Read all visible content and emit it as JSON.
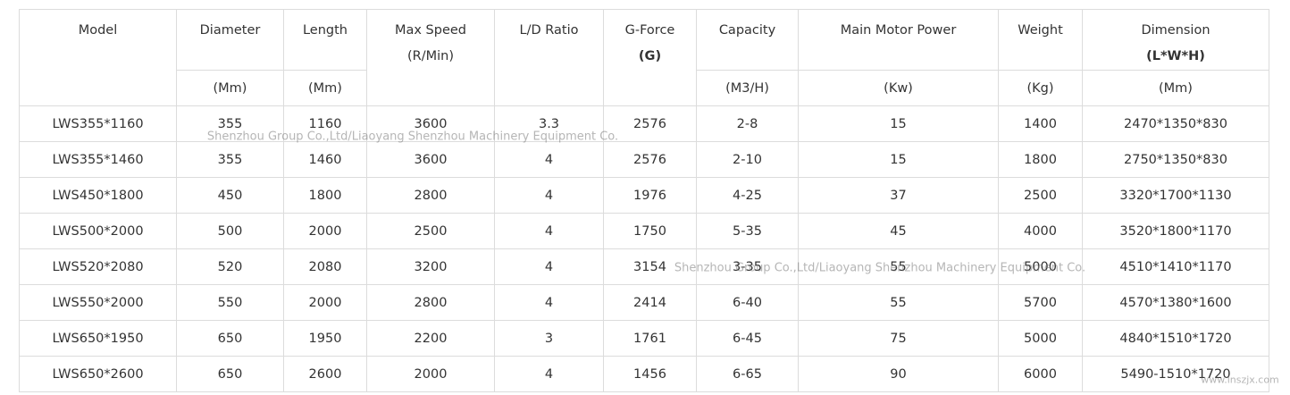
{
  "header": {
    "columns": [
      {
        "title": "Model"
      },
      {
        "title": "Diameter",
        "unit": "(Mm)"
      },
      {
        "title": "Length",
        "unit": "(Mm)"
      },
      {
        "title": "Max Speed",
        "subtitle": "(R/Min)"
      },
      {
        "title": "L/D Ratio"
      },
      {
        "title": "G-Force",
        "subtitle": "(G)"
      },
      {
        "title": "Capacity",
        "unit": "(M3/H)"
      },
      {
        "title": "Main Motor Power",
        "unit": "(Kw)"
      },
      {
        "title": "Weight",
        "unit": "(Kg)"
      },
      {
        "title": "Dimension",
        "subtitle": "(L*W*H)",
        "unit": "(Mm)"
      }
    ]
  },
  "rows": [
    [
      "LWS355*1160",
      "355",
      "1160",
      "3600",
      "3.3",
      "2576",
      "2-8",
      "15",
      "1400",
      "2470*1350*830"
    ],
    [
      "LWS355*1460",
      "355",
      "1460",
      "3600",
      "4",
      "2576",
      "2-10",
      "15",
      "1800",
      "2750*1350*830"
    ],
    [
      "LWS450*1800",
      "450",
      "1800",
      "2800",
      "4",
      "1976",
      "4-25",
      "37",
      "2500",
      "3320*1700*1130"
    ],
    [
      "LWS500*2000",
      "500",
      "2000",
      "2500",
      "4",
      "1750",
      "5-35",
      "45",
      "4000",
      "3520*1800*1170"
    ],
    [
      "LWS520*2080",
      "520",
      "2080",
      "3200",
      "4",
      "3154",
      "3-35",
      "55",
      "5000",
      "4510*1410*1170"
    ],
    [
      "LWS550*2000",
      "550",
      "2000",
      "2800",
      "4",
      "2414",
      "6-40",
      "55",
      "5700",
      "4570*1380*1600"
    ],
    [
      "LWS650*1950",
      "650",
      "1950",
      "2200",
      "3",
      "1761",
      "6-45",
      "75",
      "5000",
      "4840*1510*1720"
    ],
    [
      "LWS650*2600",
      "650",
      "2600",
      "2000",
      "4",
      "1456",
      "6-65",
      "90",
      "6000",
      "5490-1510*1720"
    ]
  ],
  "watermarks": [
    "Shenzhou Group Co.,Ltd/Liaoyang Shenzhou Machinery Equipment Co.",
    "Shenzhou Group Co.,Ltd/Liaoyang Shenzhou Machinery Equipment Co.",
    "www.lnszjx.com"
  ]
}
